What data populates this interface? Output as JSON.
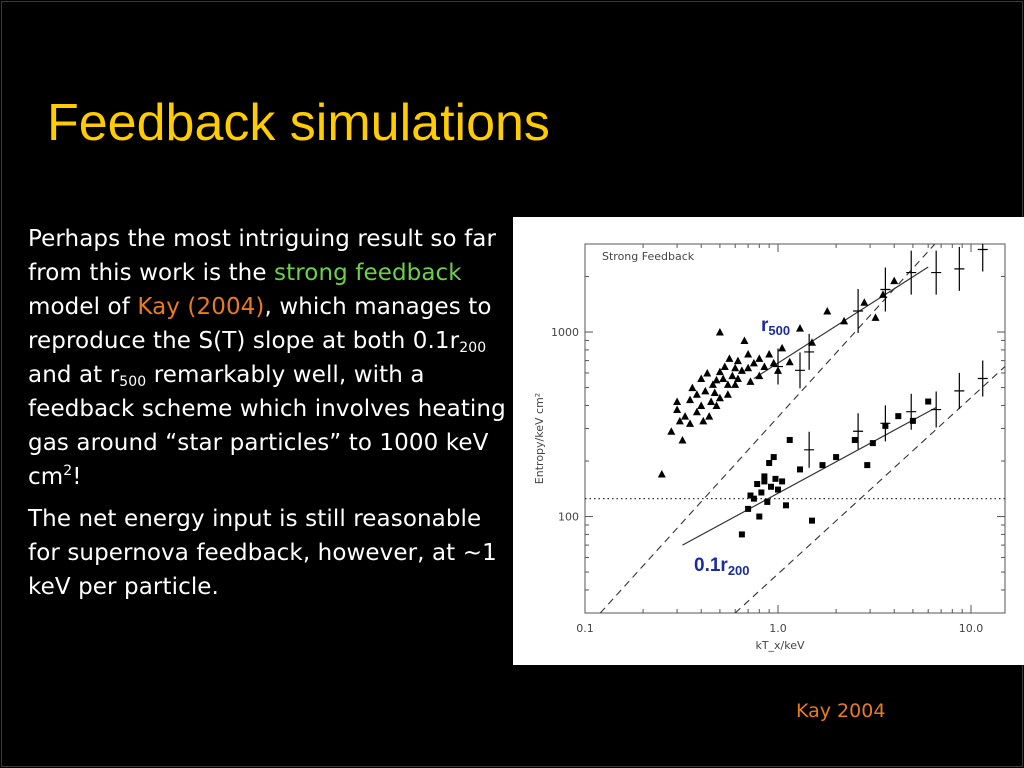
{
  "slide": {
    "title": "Feedback simulations",
    "p1": {
      "t1": "Perhaps the most intriguing result so far from this work is the ",
      "highlight_model": "strong feedback",
      "t2": " model of ",
      "citation": "Kay (2004)",
      "t3": ", which manages to reproduce the S(T) slope at both 0.1r",
      "sub1": "200",
      "t4": " and at r",
      "sub2": "500",
      "t5": " remarkably well, with a feedback scheme which involves heating gas around “star particles” to 1000 keV cm",
      "sup": "2",
      "t6": "!"
    },
    "p2": "The net energy input is still reasonable for supernova feedback, however, at ~1 keV per particle.",
    "credit": "Kay 2004"
  },
  "colors": {
    "title": "#ffcc00",
    "highlight": "#6cd14a",
    "citation": "#e87a22",
    "annotation": "#1b2c9c",
    "background": "#000000"
  },
  "chart_data": {
    "type": "scatter",
    "title": "Strong Feedback",
    "xlabel": "kT_x/keV",
    "ylabel": "Entropy/keV cm²",
    "x_scale": "log",
    "y_scale": "log",
    "xlim": [
      0.1,
      15
    ],
    "ylim": [
      30,
      3000
    ],
    "x_ticks": [
      "0.1",
      "1.0",
      "10.0"
    ],
    "y_ticks": [
      "100",
      "1000"
    ],
    "annotations": {
      "r500": {
        "base": "r",
        "sub": "500"
      },
      "r200": {
        "base": "0.1r",
        "sub": "200"
      }
    },
    "reference_line": {
      "style": "dotted",
      "y": 125
    },
    "self_similar_lines": [
      {
        "style": "dashed",
        "points": [
          [
            0.12,
            30
          ],
          [
            6.5,
            3000
          ]
        ]
      },
      {
        "style": "dashed",
        "points": [
          [
            0.6,
            30
          ],
          [
            15,
            650
          ]
        ]
      }
    ],
    "series": [
      {
        "marker": "triangle",
        "points": [
          [
            0.25,
            170
          ],
          [
            0.28,
            290
          ],
          [
            0.3,
            380
          ],
          [
            0.3,
            420
          ],
          [
            0.31,
            330
          ],
          [
            0.32,
            260
          ],
          [
            0.33,
            350
          ],
          [
            0.35,
            430
          ],
          [
            0.35,
            320
          ],
          [
            0.36,
            500
          ],
          [
            0.38,
            370
          ],
          [
            0.38,
            460
          ],
          [
            0.4,
            560
          ],
          [
            0.4,
            400
          ],
          [
            0.41,
            330
          ],
          [
            0.42,
            480
          ],
          [
            0.43,
            600
          ],
          [
            0.44,
            350
          ],
          [
            0.45,
            420
          ],
          [
            0.46,
            520
          ],
          [
            0.47,
            470
          ],
          [
            0.48,
            550
          ],
          [
            0.48,
            400
          ],
          [
            0.5,
            610
          ],
          [
            0.5,
            440
          ],
          [
            0.5,
            1000
          ],
          [
            0.52,
            560
          ],
          [
            0.53,
            650
          ],
          [
            0.55,
            520
          ],
          [
            0.55,
            460
          ],
          [
            0.56,
            720
          ],
          [
            0.58,
            580
          ],
          [
            0.6,
            640
          ],
          [
            0.6,
            520
          ],
          [
            0.62,
            700
          ],
          [
            0.62,
            560
          ],
          [
            0.65,
            620
          ],
          [
            0.67,
            900
          ],
          [
            0.7,
            760
          ],
          [
            0.7,
            640
          ],
          [
            0.72,
            540
          ],
          [
            0.75,
            680
          ],
          [
            0.8,
            720
          ],
          [
            0.8,
            580
          ],
          [
            0.85,
            650
          ],
          [
            0.9,
            760
          ],
          [
            0.95,
            680
          ],
          [
            1.0,
            620
          ],
          [
            1.05,
            820
          ],
          [
            1.15,
            690
          ],
          [
            1.3,
            1050
          ],
          [
            1.5,
            880
          ],
          [
            1.8,
            1300
          ],
          [
            2.2,
            1150
          ],
          [
            2.8,
            1450
          ],
          [
            3.2,
            1200
          ],
          [
            3.5,
            1600
          ],
          [
            4.0,
            1900
          ]
        ]
      },
      {
        "marker": "square",
        "points": [
          [
            0.65,
            80
          ],
          [
            0.7,
            110
          ],
          [
            0.72,
            130
          ],
          [
            0.75,
            125
          ],
          [
            0.78,
            150
          ],
          [
            0.8,
            100
          ],
          [
            0.82,
            135
          ],
          [
            0.85,
            165
          ],
          [
            0.85,
            155
          ],
          [
            0.88,
            120
          ],
          [
            0.9,
            195
          ],
          [
            0.92,
            145
          ],
          [
            0.95,
            210
          ],
          [
            0.97,
            160
          ],
          [
            1.0,
            140
          ],
          [
            1.05,
            155
          ],
          [
            1.1,
            115
          ],
          [
            1.15,
            260
          ],
          [
            1.3,
            180
          ],
          [
            1.5,
            95
          ],
          [
            1.7,
            190
          ],
          [
            2.0,
            210
          ],
          [
            2.5,
            260
          ],
          [
            2.9,
            190
          ],
          [
            3.1,
            250
          ],
          [
            3.6,
            310
          ],
          [
            4.2,
            350
          ],
          [
            5.0,
            330
          ],
          [
            6.0,
            420
          ]
        ]
      },
      {
        "marker": "error_cross",
        "points": [
          [
            1.0,
            650
          ],
          [
            1.3,
            620
          ],
          [
            1.45,
            780
          ],
          [
            2.6,
            1300
          ],
          [
            3.6,
            1700
          ],
          [
            4.9,
            2100
          ],
          [
            6.6,
            2100
          ],
          [
            8.7,
            2200
          ],
          [
            11.5,
            2800
          ],
          [
            1.45,
            230
          ],
          [
            2.6,
            290
          ],
          [
            3.6,
            320
          ],
          [
            4.9,
            370
          ],
          [
            6.6,
            380
          ],
          [
            8.7,
            480
          ],
          [
            11.5,
            560
          ]
        ]
      }
    ],
    "fits": [
      {
        "label": "r500",
        "points": [
          [
            0.75,
            560
          ],
          [
            6.0,
            2250
          ]
        ]
      },
      {
        "label": "0.1r200",
        "points": [
          [
            0.32,
            70
          ],
          [
            6.6,
            390
          ]
        ]
      }
    ]
  }
}
